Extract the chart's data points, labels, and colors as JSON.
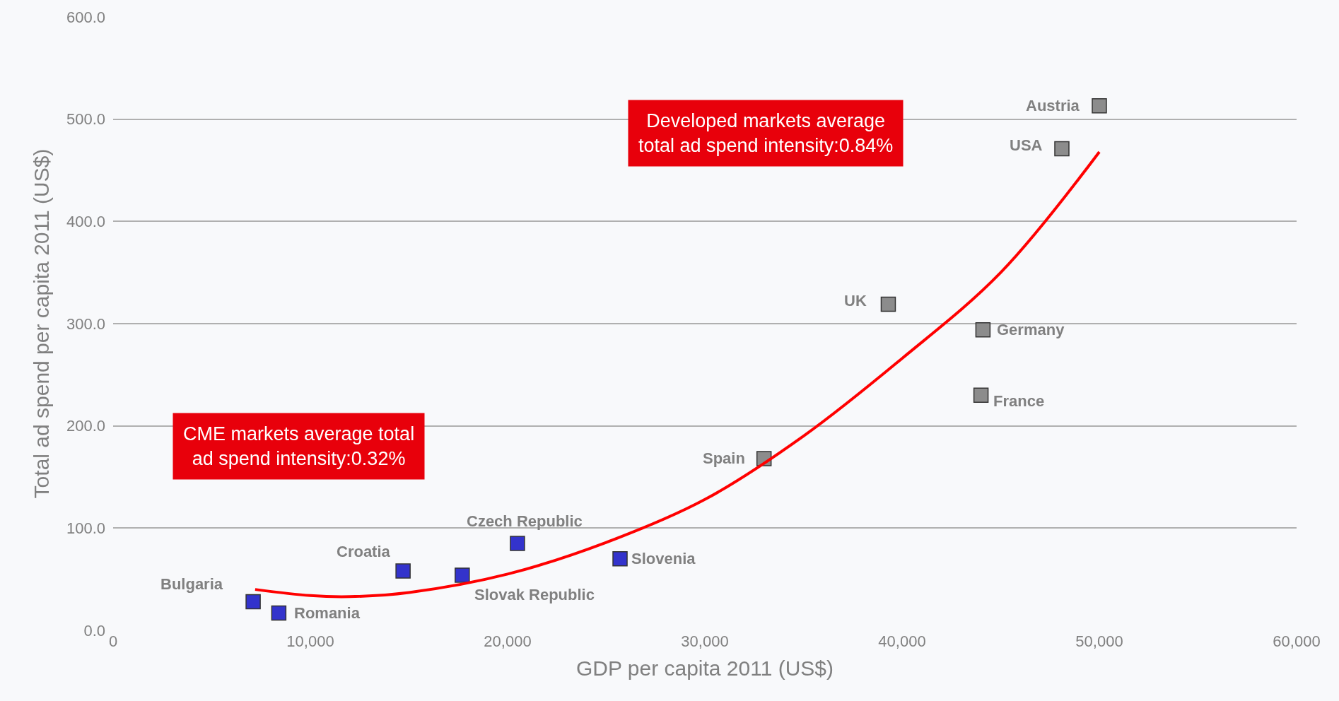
{
  "chart_data": {
    "type": "scatter",
    "xlabel": "GDP per capita 2011 (US$)",
    "ylabel": "Total ad spend per capita 2011 (US$)",
    "xlim": [
      0,
      60000
    ],
    "xticks": [
      {
        "value": 0,
        "label": "0"
      },
      {
        "value": 10000,
        "label": "10,000"
      },
      {
        "value": 20000,
        "label": "20,000"
      },
      {
        "value": 30000,
        "label": "30,000"
      },
      {
        "value": 40000,
        "label": "40,000"
      },
      {
        "value": 50000,
        "label": "50,000"
      },
      {
        "value": 60000,
        "label": "60,000"
      }
    ],
    "ylim": [
      0,
      600
    ],
    "yticks": [
      {
        "value": 0,
        "label": "0.0"
      },
      {
        "value": 100,
        "label": "100.0"
      },
      {
        "value": 200,
        "label": "200.0"
      },
      {
        "value": 300,
        "label": "300.0"
      },
      {
        "value": 400,
        "label": "400.0"
      },
      {
        "value": 500,
        "label": "500.0"
      },
      {
        "value": 600,
        "label": "600.0"
      }
    ],
    "grid": "y",
    "series": [
      {
        "marker": "square",
        "x": [
          7100,
          8400,
          14700,
          17700,
          20500,
          25700,
          33000,
          39300,
          44100,
          44000,
          48100,
          50000
        ],
        "values": [
          28,
          17,
          58,
          54,
          85,
          70,
          168,
          319,
          294,
          230,
          471,
          513
        ],
        "colors": [
          "#3333cc",
          "#3333cc",
          "#3333cc",
          "#3333cc",
          "#3333cc",
          "#3333cc",
          "#8c8c8c",
          "#8c8c8c",
          "#8c8c8c",
          "#8c8c8c",
          "#8c8c8c",
          "#8c8c8c"
        ]
      },
      {
        "type": "line",
        "marker": "none",
        "color": "#ff0000",
        "x": [
          7200,
          10000,
          12000,
          15000,
          20000,
          25000,
          30000,
          35000,
          40000,
          45000,
          50000
        ],
        "values": [
          40,
          34,
          33,
          37,
          55,
          86,
          128,
          190,
          266,
          350,
          468
        ]
      }
    ],
    "annotations": [
      {
        "text": "Bulgaria",
        "x": 7100,
        "y": 28
      },
      {
        "text": "Romania",
        "x": 8400,
        "y": 17
      },
      {
        "text": "Croatia",
        "x": 14700,
        "y": 58
      },
      {
        "text": "Slovak Republic",
        "x": 17700,
        "y": 54
      },
      {
        "text": "Czech Republic",
        "x": 20500,
        "y": 85
      },
      {
        "text": "Slovenia",
        "x": 25700,
        "y": 70
      },
      {
        "text": "Spain",
        "x": 33000,
        "y": 168
      },
      {
        "text": "UK",
        "x": 39300,
        "y": 319
      },
      {
        "text": "Germany",
        "x": 44100,
        "y": 294
      },
      {
        "text": "France",
        "x": 44000,
        "y": 230
      },
      {
        "text": "USA",
        "x": 48100,
        "y": 471
      },
      {
        "text": "Austria",
        "x": 50000,
        "y": 513
      },
      "CME markets average total\nad spend intensity:0.32%",
      "Developed markets average\ntotal ad spend intensity:0.84%"
    ]
  }
}
